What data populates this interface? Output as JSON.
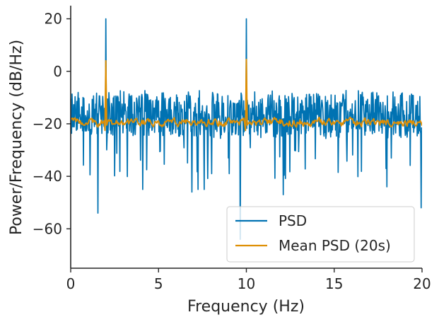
{
  "chart_data": {
    "type": "line",
    "title": "",
    "xlabel": "Frequency (Hz)",
    "ylabel": "Power/Frequency (dB/Hz)",
    "xlim": [
      0,
      20
    ],
    "ylim": [
      -75,
      25
    ],
    "x_ticks": [
      0,
      5,
      10,
      15,
      20
    ],
    "x_tick_labels": [
      "0",
      "5",
      "10",
      "15",
      "20"
    ],
    "y_ticks": [
      -60,
      -40,
      -20,
      0,
      20
    ],
    "y_tick_labels": [
      "−60",
      "−40",
      "−20",
      "0",
      "20"
    ],
    "grid": false,
    "legend_position": "lower-right",
    "series": [
      {
        "name": "PSD",
        "color": "#0072b2",
        "sample_step_hz": 0.025,
        "typical_range": [
          -27,
          -7
        ],
        "peaks": [
          {
            "x": 2,
            "y": 20
          },
          {
            "x": 10,
            "y": 20
          }
        ],
        "notable_dips": [
          {
            "x": 1.55,
            "y": -54
          },
          {
            "x": 4.1,
            "y": -45
          },
          {
            "x": 6.9,
            "y": -46
          },
          {
            "x": 7.25,
            "y": -45
          },
          {
            "x": 7.6,
            "y": -45
          },
          {
            "x": 9.65,
            "y": -64
          },
          {
            "x": 12.1,
            "y": -47
          },
          {
            "x": 18.0,
            "y": -44
          },
          {
            "x": 19.95,
            "y": -52
          }
        ]
      },
      {
        "name": "Mean PSD (20s)",
        "color": "#de8f05",
        "sample_step_hz": 0.05,
        "baseline": -19.5,
        "peaks": [
          {
            "x": 2,
            "y": 4
          },
          {
            "x": 10,
            "y": 4.5
          }
        ]
      }
    ]
  }
}
